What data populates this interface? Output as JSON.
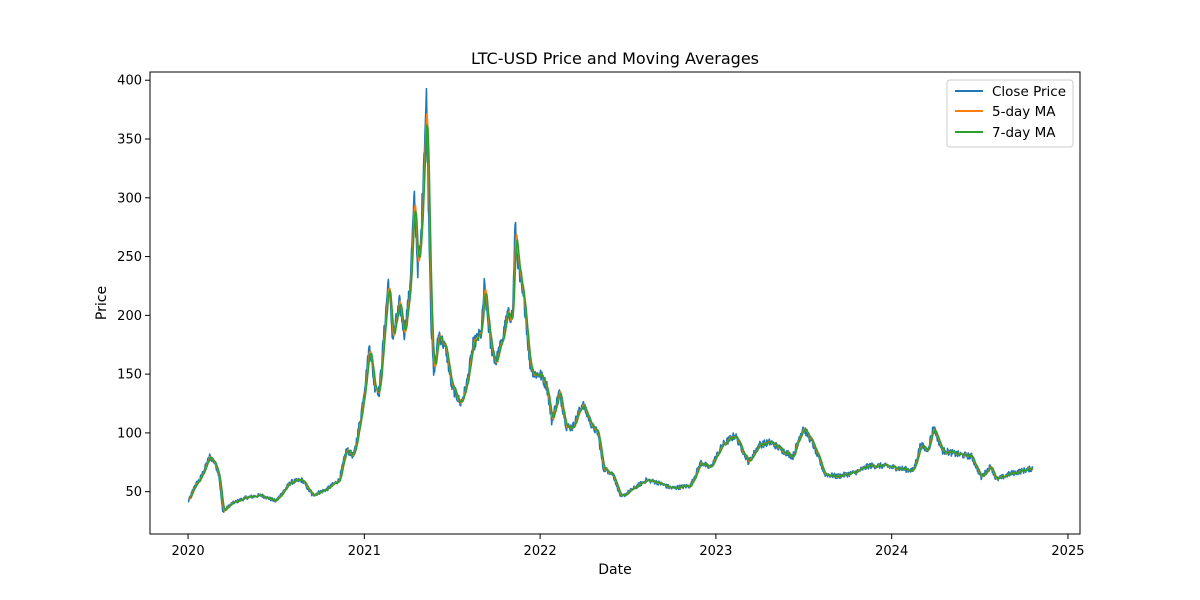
{
  "chart_data": {
    "type": "line",
    "title": "LTC-USD Price and Moving Averages",
    "xlabel": "Date",
    "ylabel": "Price",
    "xlim": [
      "2019-10-14",
      "2025-01-26"
    ],
    "ylim": [
      14,
      407
    ],
    "x_ticks": [
      "2020",
      "2021",
      "2022",
      "2023",
      "2024",
      "2025"
    ],
    "x_tick_dates": [
      "2020-01-01",
      "2021-01-01",
      "2022-01-01",
      "2023-01-01",
      "2024-01-01",
      "2025-01-01"
    ],
    "y_ticks": [
      50,
      100,
      150,
      200,
      250,
      300,
      350,
      400
    ],
    "grid": false,
    "legend_position": "top-right",
    "series": [
      {
        "name": "Close Price",
        "color": "#1f77b4"
      },
      {
        "name": "5-day MA",
        "color": "#ff7f0e"
      },
      {
        "name": "7-day MA",
        "color": "#2ca02c"
      }
    ],
    "close_points": [
      [
        "2020-01-01",
        41
      ],
      [
        "2020-01-15",
        55
      ],
      [
        "2020-01-25",
        60
      ],
      [
        "2020-02-05",
        70
      ],
      [
        "2020-02-15",
        80
      ],
      [
        "2020-02-25",
        75
      ],
      [
        "2020-03-05",
        65
      ],
      [
        "2020-03-13",
        33
      ],
      [
        "2020-04-01",
        40
      ],
      [
        "2020-05-01",
        45
      ],
      [
        "2020-06-01",
        47
      ],
      [
        "2020-07-01",
        42
      ],
      [
        "2020-08-01",
        58
      ],
      [
        "2020-08-25",
        60
      ],
      [
        "2020-09-15",
        47
      ],
      [
        "2020-10-15",
        52
      ],
      [
        "2020-11-10",
        60
      ],
      [
        "2020-11-25",
        86
      ],
      [
        "2020-12-10",
        80
      ],
      [
        "2020-12-25",
        115
      ],
      [
        "2021-01-05",
        150
      ],
      [
        "2021-01-12",
        175
      ],
      [
        "2021-01-22",
        140
      ],
      [
        "2021-02-01",
        135
      ],
      [
        "2021-02-10",
        180
      ],
      [
        "2021-02-20",
        230
      ],
      [
        "2021-03-01",
        180
      ],
      [
        "2021-03-15",
        210
      ],
      [
        "2021-03-25",
        185
      ],
      [
        "2021-04-05",
        220
      ],
      [
        "2021-04-15",
        300
      ],
      [
        "2021-04-22",
        240
      ],
      [
        "2021-04-28",
        260
      ],
      [
        "2021-05-05",
        340
      ],
      [
        "2021-05-10",
        385
      ],
      [
        "2021-05-14",
        300
      ],
      [
        "2021-05-20",
        190
      ],
      [
        "2021-05-25",
        150
      ],
      [
        "2021-06-05",
        185
      ],
      [
        "2021-06-20",
        170
      ],
      [
        "2021-07-01",
        140
      ],
      [
        "2021-07-20",
        125
      ],
      [
        "2021-08-01",
        140
      ],
      [
        "2021-08-15",
        175
      ],
      [
        "2021-09-01",
        185
      ],
      [
        "2021-09-07",
        225
      ],
      [
        "2021-09-20",
        175
      ],
      [
        "2021-10-01",
        160
      ],
      [
        "2021-10-15",
        180
      ],
      [
        "2021-10-25",
        200
      ],
      [
        "2021-11-05",
        200
      ],
      [
        "2021-11-10",
        275
      ],
      [
        "2021-11-20",
        230
      ],
      [
        "2021-12-01",
        205
      ],
      [
        "2021-12-10",
        160
      ],
      [
        "2021-12-20",
        150
      ],
      [
        "2022-01-01",
        150
      ],
      [
        "2022-01-15",
        140
      ],
      [
        "2022-01-25",
        110
      ],
      [
        "2022-02-10",
        135
      ],
      [
        "2022-02-25",
        105
      ],
      [
        "2022-03-10",
        105
      ],
      [
        "2022-03-30",
        125
      ],
      [
        "2022-04-20",
        105
      ],
      [
        "2022-05-01",
        100
      ],
      [
        "2022-05-12",
        70
      ],
      [
        "2022-06-01",
        65
      ],
      [
        "2022-06-18",
        45
      ],
      [
        "2022-07-15",
        53
      ],
      [
        "2022-08-10",
        60
      ],
      [
        "2022-09-01",
        58
      ],
      [
        "2022-10-01",
        53
      ],
      [
        "2022-11-09",
        55
      ],
      [
        "2022-12-01",
        75
      ],
      [
        "2022-12-20",
        70
      ],
      [
        "2023-01-15",
        90
      ],
      [
        "2023-02-10",
        98
      ],
      [
        "2023-03-10",
        75
      ],
      [
        "2023-04-01",
        90
      ],
      [
        "2023-04-25",
        92
      ],
      [
        "2023-05-20",
        85
      ],
      [
        "2023-06-10",
        80
      ],
      [
        "2023-06-22",
        95
      ],
      [
        "2023-07-01",
        105
      ],
      [
        "2023-07-20",
        92
      ],
      [
        "2023-08-15",
        65
      ],
      [
        "2023-09-10",
        63
      ],
      [
        "2023-10-15",
        66
      ],
      [
        "2023-11-15",
        72
      ],
      [
        "2023-12-15",
        72
      ],
      [
        "2024-01-15",
        70
      ],
      [
        "2024-02-15",
        68
      ],
      [
        "2024-03-01",
        90
      ],
      [
        "2024-03-15",
        85
      ],
      [
        "2024-03-28",
        105
      ],
      [
        "2024-04-15",
        85
      ],
      [
        "2024-05-15",
        82
      ],
      [
        "2024-06-15",
        80
      ],
      [
        "2024-07-05",
        62
      ],
      [
        "2024-07-25",
        72
      ],
      [
        "2024-08-05",
        60
      ],
      [
        "2024-09-01",
        65
      ],
      [
        "2024-10-01",
        68
      ],
      [
        "2024-10-20",
        70
      ]
    ]
  }
}
